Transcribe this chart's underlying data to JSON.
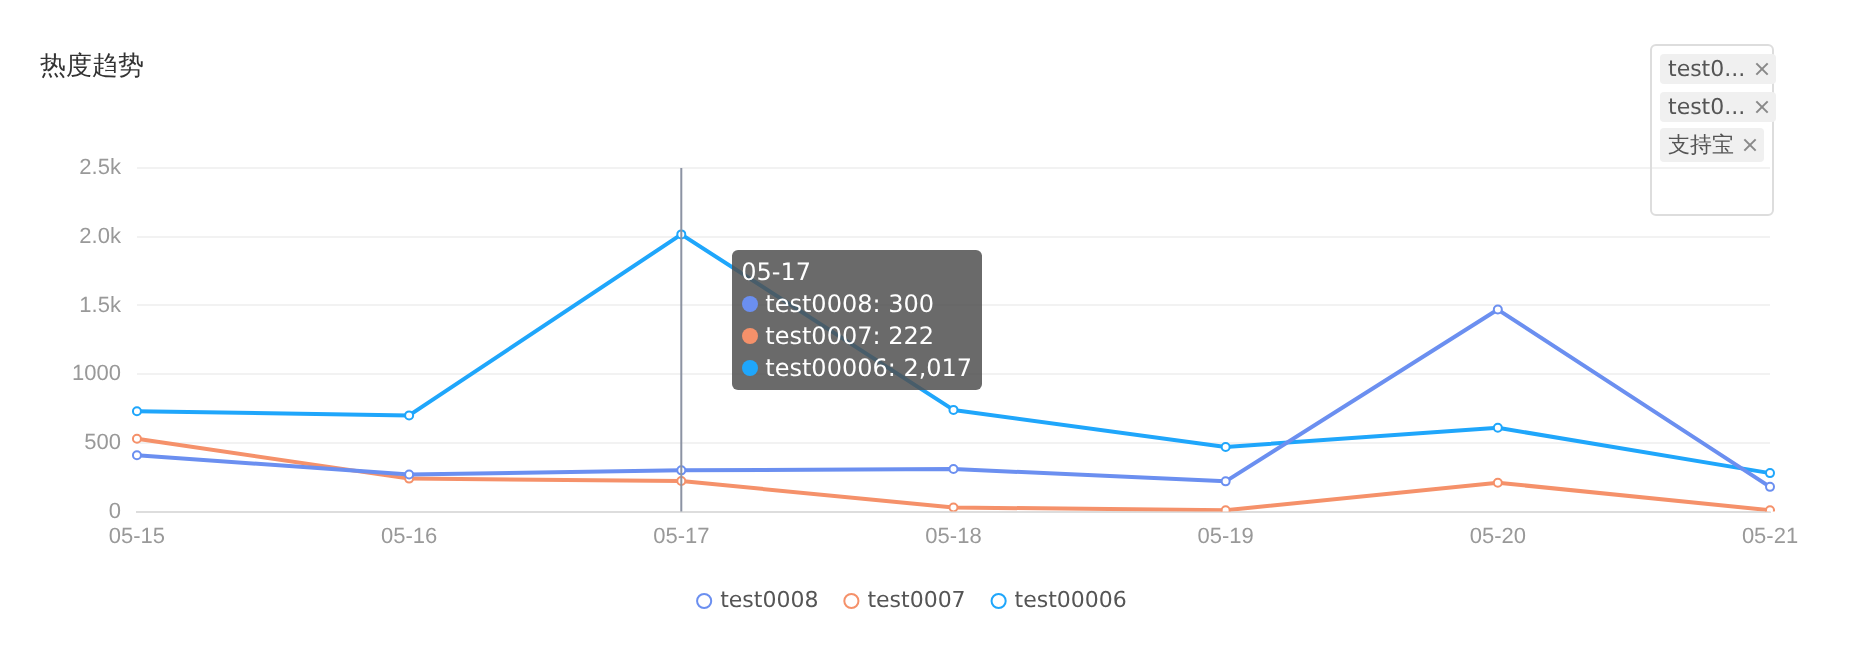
{
  "chart_data": {
    "type": "line",
    "title": "热度趋势",
    "categories": [
      "05-15",
      "05-16",
      "05-17",
      "05-18",
      "05-19",
      "05-20",
      "05-21"
    ],
    "series": [
      {
        "name": "test0008",
        "color": "#6b8ff0",
        "values": [
          410,
          270,
          300,
          310,
          220,
          1470,
          180
        ]
      },
      {
        "name": "test0007",
        "color": "#f5916a",
        "values": [
          530,
          240,
          222,
          30,
          10,
          210,
          10
        ]
      },
      {
        "name": "test00006",
        "color": "#1fa6fb",
        "values": [
          730,
          700,
          2017,
          740,
          470,
          610,
          280
        ]
      }
    ],
    "ylim": [
      0,
      2500
    ],
    "yticks": [
      0,
      500,
      1000,
      {
        "value": 1500,
        "label": "1.5k"
      },
      {
        "value": 2000,
        "label": "2.0k"
      },
      {
        "value": 2500,
        "label": "2.5k"
      }
    ],
    "grid": "y",
    "legend": "bottom",
    "marker": "circle",
    "line_style": "solid",
    "ref_lines": [
      {
        "axis": "x",
        "value": "05-17",
        "color": "#8c93a3"
      }
    ],
    "annotations": [
      {
        "text": "05-17\ntest0008: 300\ntest0007: 222\ntest00006: 2,017",
        "x": "05-17",
        "y": 2017
      },
      "test0...",
      "test0...",
      "支持宝"
    ]
  }
}
